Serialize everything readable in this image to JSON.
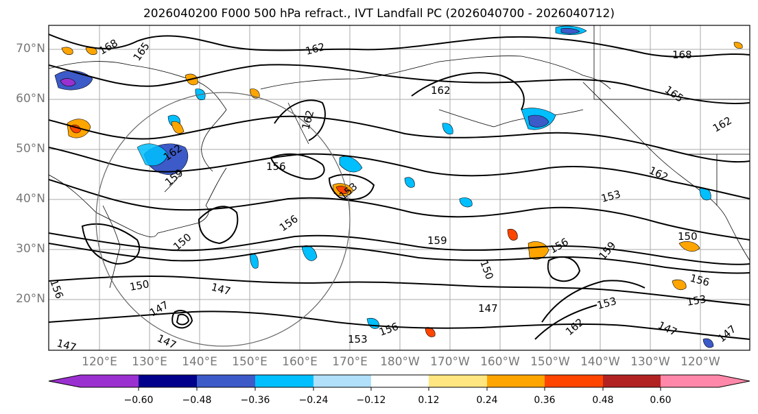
{
  "title": "2026040200 F000 500 hPa refract., IVT Landfall PC (2026040700 - 2026040712)",
  "lat_labels": [
    "70°N",
    "60°N",
    "50°N",
    "40°N",
    "30°N",
    "20°N"
  ],
  "lon_labels": [
    "120°E",
    "130°E",
    "140°E",
    "150°E",
    "160°E",
    "170°E",
    "180°W",
    "170°W",
    "160°W",
    "150°W",
    "140°W",
    "130°W",
    "120°W"
  ],
  "colorbar": {
    "ticks": [
      "−0.60",
      "−0.48",
      "−0.36",
      "−0.24",
      "−0.12",
      "0.12",
      "0.24",
      "0.36",
      "0.48",
      "0.60"
    ],
    "colors": [
      "#9b30d0",
      "#00008b",
      "#3c5ac8",
      "#00bfff",
      "#b0e0fa",
      "#ffffff",
      "#ffe680",
      "#ffa500",
      "#ff4500",
      "#b22222",
      "#ff88aa"
    ]
  },
  "contour_labels": [
    "168",
    "165",
    "162",
    "162",
    "168",
    "165",
    "162",
    "162",
    "162",
    "156",
    "159",
    "153",
    "153",
    "156",
    "150",
    "159",
    "156",
    "150",
    "150",
    "147",
    "147",
    "147",
    "153",
    "156",
    "147",
    "162",
    "153",
    "156",
    "153",
    "147",
    "147",
    "147",
    "150",
    "156",
    "162",
    "159"
  ]
}
